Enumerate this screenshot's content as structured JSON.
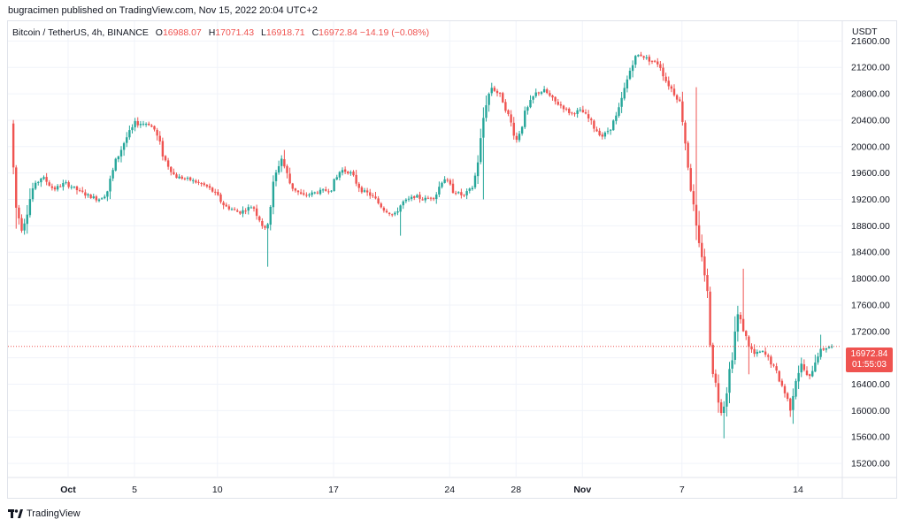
{
  "publisher": "bugracimen published on TradingView.com, Nov 15, 2022 20:04 UTC+2",
  "brand": "TradingView",
  "legend": {
    "symbol": "Bitcoin / TetherUS, 4h, BINANCE",
    "open_key": "O",
    "open": "16988.07",
    "high_key": "H",
    "high": "17071.43",
    "low_key": "L",
    "low": "16918.71",
    "close_key": "C",
    "close": "16972.84",
    "change": "−14.19 (−0.08%)"
  },
  "price_tag": {
    "price": "16972.84",
    "countdown": "01:55:03"
  },
  "chart_data": {
    "type": "candlestick",
    "currency": "USDT",
    "interval": "4h",
    "ylim": [
      15000,
      21900
    ],
    "y_ticks": [
      15200,
      15600,
      16000,
      16400,
      16800,
      17200,
      17600,
      18000,
      18400,
      18800,
      19200,
      19600,
      20000,
      20400,
      20800,
      21200,
      21600
    ],
    "y_tick_labels": [
      "15200.00",
      "15600.00",
      "16000.00",
      "16400.00",
      "16800.00",
      "17200.00",
      "17600.00",
      "18000.00",
      "18400.00",
      "18800.00",
      "19200.00",
      "19600.00",
      "20000.00",
      "20400.00",
      "20800.00",
      "21200.00",
      "21600.00"
    ],
    "x_ticks": [
      {
        "label": "Oct",
        "day": 1,
        "bold": true
      },
      {
        "label": "5",
        "day": 5
      },
      {
        "label": "10",
        "day": 10
      },
      {
        "label": "17",
        "day": 17
      },
      {
        "label": "24",
        "day": 24
      },
      {
        "label": "28",
        "day": 28
      },
      {
        "label": "Nov",
        "day": 32,
        "bold": true
      },
      {
        "label": "7",
        "day": 38
      },
      {
        "label": "14",
        "day": 45
      }
    ],
    "up_color": "#26a69a",
    "down_color": "#ef5350",
    "last_price": 16972.84,
    "path": [
      [
        -2.3,
        20350
      ],
      [
        -2.0,
        19100
      ],
      [
        -1.6,
        18750
      ],
      [
        -1.0,
        19350
      ],
      [
        -0.4,
        19550
      ],
      [
        0.3,
        19350
      ],
      [
        1.0,
        19450
      ],
      [
        2.0,
        19300
      ],
      [
        3.0,
        19200
      ],
      [
        3.5,
        19300
      ],
      [
        4.0,
        19750
      ],
      [
        4.6,
        20100
      ],
      [
        5.2,
        20350
      ],
      [
        6.0,
        20350
      ],
      [
        6.4,
        20250
      ],
      [
        7.0,
        19800
      ],
      [
        7.6,
        19550
      ],
      [
        8.5,
        19500
      ],
      [
        9.5,
        19400
      ],
      [
        10.0,
        19300
      ],
      [
        10.6,
        19100
      ],
      [
        11.5,
        19000
      ],
      [
        12.3,
        19100
      ],
      [
        13.1,
        18700
      ],
      [
        13.6,
        19500
      ],
      [
        14.0,
        19850
      ],
      [
        14.6,
        19400
      ],
      [
        15.3,
        19250
      ],
      [
        16.0,
        19300
      ],
      [
        17.0,
        19350
      ],
      [
        17.6,
        19650
      ],
      [
        18.2,
        19600
      ],
      [
        18.8,
        19350
      ],
      [
        19.5,
        19250
      ],
      [
        20.2,
        19050
      ],
      [
        20.8,
        18950
      ],
      [
        21.3,
        19150
      ],
      [
        22.1,
        19250
      ],
      [
        22.6,
        19200
      ],
      [
        23.3,
        19250
      ],
      [
        23.8,
        19550
      ],
      [
        24.3,
        19350
      ],
      [
        25.0,
        19250
      ],
      [
        25.6,
        19400
      ],
      [
        26.0,
        20000
      ],
      [
        26.3,
        20650
      ],
      [
        26.7,
        20900
      ],
      [
        27.3,
        20750
      ],
      [
        27.8,
        20400
      ],
      [
        28.2,
        20100
      ],
      [
        28.8,
        20550
      ],
      [
        29.3,
        20800
      ],
      [
        29.9,
        20850
      ],
      [
        30.4,
        20700
      ],
      [
        31.0,
        20600
      ],
      [
        31.5,
        20500
      ],
      [
        32.1,
        20550
      ],
      [
        32.6,
        20400
      ],
      [
        33.0,
        20250
      ],
      [
        33.4,
        20150
      ],
      [
        33.9,
        20300
      ],
      [
        34.3,
        20500
      ],
      [
        34.8,
        20950
      ],
      [
        35.2,
        21300
      ],
      [
        35.6,
        21400
      ],
      [
        36.3,
        21300
      ],
      [
        36.8,
        21250
      ],
      [
        37.2,
        21000
      ],
      [
        37.6,
        20850
      ],
      [
        38.1,
        20650
      ],
      [
        38.5,
        19800
      ],
      [
        38.8,
        19200
      ],
      [
        39.1,
        18500
      ],
      [
        39.4,
        18350
      ],
      [
        39.7,
        17750
      ],
      [
        40.0,
        16700
      ],
      [
        40.3,
        16250
      ],
      [
        40.6,
        15950
      ],
      [
        40.9,
        16400
      ],
      [
        41.2,
        16850
      ],
      [
        41.5,
        17450
      ],
      [
        41.8,
        17300
      ],
      [
        42.1,
        17050
      ],
      [
        42.5,
        16850
      ],
      [
        43.0,
        16900
      ],
      [
        43.5,
        16750
      ],
      [
        44.0,
        16500
      ],
      [
        44.4,
        16250
      ],
      [
        44.7,
        16050
      ],
      [
        45.0,
        16500
      ],
      [
        45.4,
        16700
      ],
      [
        45.8,
        16450
      ],
      [
        46.3,
        16850
      ],
      [
        46.8,
        16950
      ],
      [
        47.1,
        16972.84
      ]
    ],
    "wick_spikes": [
      {
        "day": 13.1,
        "low": 18180
      },
      {
        "day": 14.0,
        "high": 19950
      },
      {
        "day": 21.1,
        "low": 18650
      },
      {
        "day": 26.0,
        "low": 19200
      },
      {
        "day": 38.8,
        "high": 20900
      },
      {
        "day": 39.7,
        "low": 17150
      },
      {
        "day": 40.6,
        "low": 15580
      },
      {
        "day": 41.7,
        "high": 18150
      },
      {
        "day": 42.1,
        "low": 16550
      },
      {
        "day": 44.7,
        "low": 15800
      },
      {
        "day": 46.3,
        "high": 17150
      }
    ]
  }
}
